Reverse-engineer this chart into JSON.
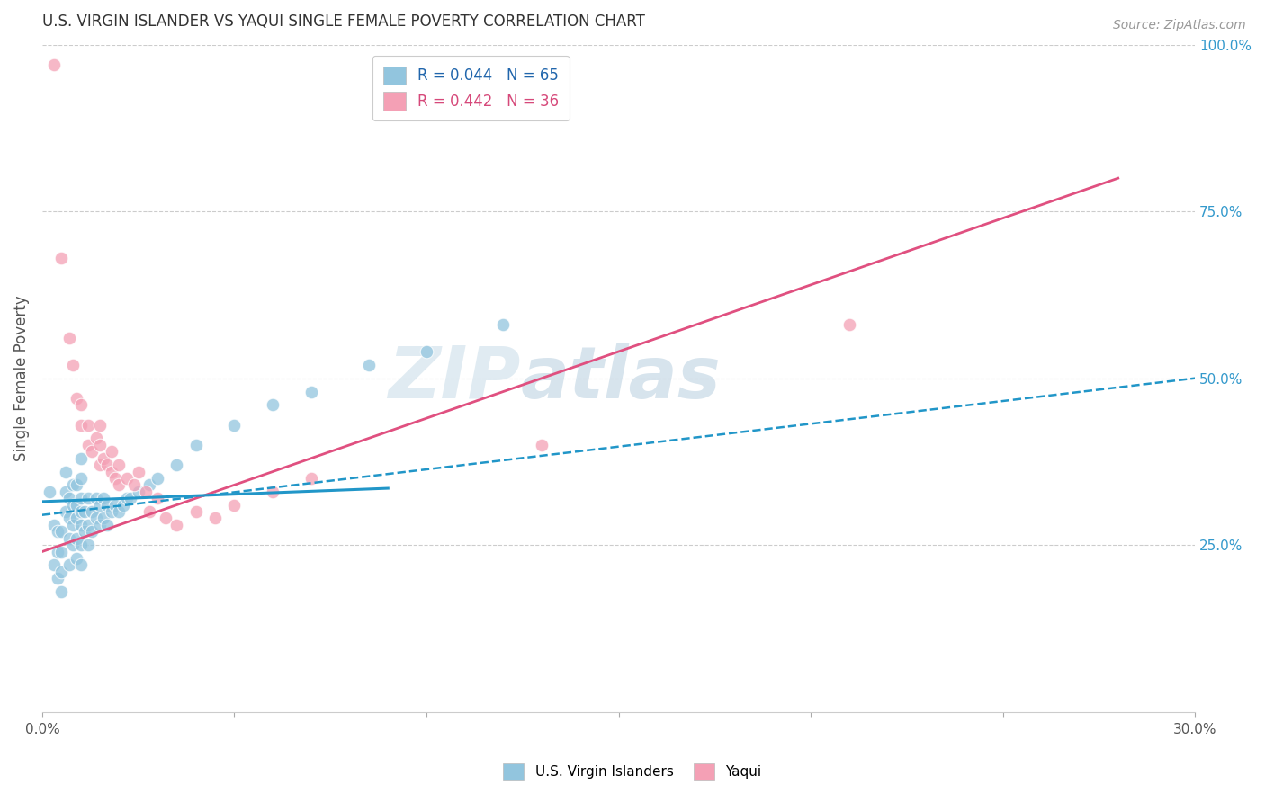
{
  "title": "U.S. VIRGIN ISLANDER VS YAQUI SINGLE FEMALE POVERTY CORRELATION CHART",
  "source": "Source: ZipAtlas.com",
  "ylabel": "Single Female Poverty",
  "xlim": [
    0.0,
    0.3
  ],
  "ylim": [
    0.0,
    1.0
  ],
  "x_ticks": [
    0.0,
    0.05,
    0.1,
    0.15,
    0.2,
    0.25,
    0.3
  ],
  "x_tick_labels": [
    "0.0%",
    "",
    "",
    "",
    "",
    "",
    "30.0%"
  ],
  "y_tick_vals_right": [
    1.0,
    0.75,
    0.5,
    0.25
  ],
  "y_tick_labels_right": [
    "100.0%",
    "75.0%",
    "50.0%",
    "25.0%"
  ],
  "watermark_zip": "ZIP",
  "watermark_atlas": "atlas",
  "legend_r1": "0.044",
  "legend_n1": "65",
  "legend_r2": "0.442",
  "legend_n2": "36",
  "color_blue": "#92c5de",
  "color_pink": "#f4a0b5",
  "color_blue_dark": "#2166ac",
  "color_pink_dark": "#d6497a",
  "trend_blue_color": "#2196c8",
  "trend_pink_color": "#e05080",
  "grid_color": "#cccccc",
  "title_color": "#333333",
  "axis_label_color": "#555555",
  "right_tick_color": "#3399cc",
  "scatter_blue_x": [
    0.002,
    0.003,
    0.003,
    0.004,
    0.004,
    0.004,
    0.005,
    0.005,
    0.005,
    0.005,
    0.006,
    0.006,
    0.006,
    0.007,
    0.007,
    0.007,
    0.007,
    0.008,
    0.008,
    0.008,
    0.008,
    0.009,
    0.009,
    0.009,
    0.009,
    0.009,
    0.01,
    0.01,
    0.01,
    0.01,
    0.01,
    0.01,
    0.01,
    0.011,
    0.011,
    0.012,
    0.012,
    0.012,
    0.013,
    0.013,
    0.014,
    0.014,
    0.015,
    0.015,
    0.016,
    0.016,
    0.017,
    0.017,
    0.018,
    0.019,
    0.02,
    0.021,
    0.022,
    0.023,
    0.025,
    0.028,
    0.03,
    0.035,
    0.04,
    0.05,
    0.06,
    0.07,
    0.085,
    0.1,
    0.12
  ],
  "scatter_blue_y": [
    0.33,
    0.28,
    0.22,
    0.2,
    0.24,
    0.27,
    0.18,
    0.21,
    0.24,
    0.27,
    0.3,
    0.33,
    0.36,
    0.22,
    0.26,
    0.29,
    0.32,
    0.25,
    0.28,
    0.31,
    0.34,
    0.23,
    0.26,
    0.29,
    0.31,
    0.34,
    0.22,
    0.25,
    0.28,
    0.3,
    0.32,
    0.35,
    0.38,
    0.27,
    0.3,
    0.25,
    0.28,
    0.32,
    0.27,
    0.3,
    0.29,
    0.32,
    0.28,
    0.31,
    0.29,
    0.32,
    0.28,
    0.31,
    0.3,
    0.31,
    0.3,
    0.31,
    0.32,
    0.32,
    0.33,
    0.34,
    0.35,
    0.37,
    0.4,
    0.43,
    0.46,
    0.48,
    0.52,
    0.54,
    0.58
  ],
  "scatter_pink_x": [
    0.003,
    0.005,
    0.007,
    0.008,
    0.009,
    0.01,
    0.01,
    0.012,
    0.012,
    0.013,
    0.014,
    0.015,
    0.015,
    0.015,
    0.016,
    0.017,
    0.018,
    0.018,
    0.019,
    0.02,
    0.02,
    0.022,
    0.024,
    0.025,
    0.027,
    0.028,
    0.03,
    0.032,
    0.035,
    0.04,
    0.045,
    0.05,
    0.06,
    0.07,
    0.13,
    0.21
  ],
  "scatter_pink_y": [
    0.97,
    0.68,
    0.56,
    0.52,
    0.47,
    0.43,
    0.46,
    0.4,
    0.43,
    0.39,
    0.41,
    0.37,
    0.4,
    0.43,
    0.38,
    0.37,
    0.36,
    0.39,
    0.35,
    0.34,
    0.37,
    0.35,
    0.34,
    0.36,
    0.33,
    0.3,
    0.32,
    0.29,
    0.28,
    0.3,
    0.29,
    0.31,
    0.33,
    0.35,
    0.4,
    0.58
  ],
  "trend_blue_x0": 0.0,
  "trend_blue_x1": 0.3,
  "trend_blue_y0": 0.295,
  "trend_blue_y1": 0.5,
  "trend_blue_solid_x0": 0.0,
  "trend_blue_solid_x1": 0.09,
  "trend_blue_solid_y0": 0.315,
  "trend_blue_solid_y1": 0.335,
  "trend_pink_x0": 0.0,
  "trend_pink_x1": 0.28,
  "trend_pink_y0": 0.24,
  "trend_pink_y1": 0.8
}
